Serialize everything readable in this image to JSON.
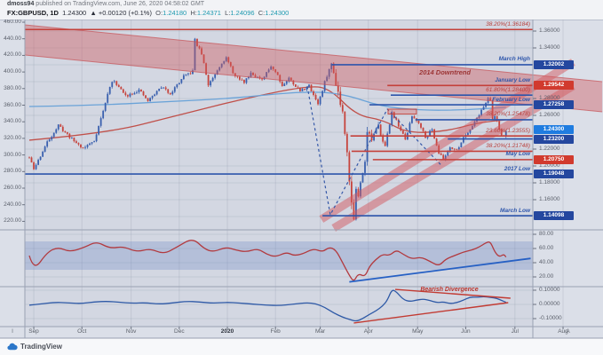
{
  "header": {
    "byline_user": "dmoss94",
    "byline_rest": " published on TradingView.com, June 26, 2020 04:58:02 GMT",
    "symbol": "FX:GBPUSD, 1D",
    "last_price": "1.24300",
    "change": "▲ +0.00120 (+0.1%)",
    "o_label": "O:",
    "o_value": "1.24180",
    "h_label": "H:",
    "h_value": "1.24371",
    "l_label": "L:",
    "l_value": "1.24096",
    "c_label": "C:",
    "c_value": "1.24300"
  },
  "watermark": {
    "brand": "TradingView"
  },
  "axes": {
    "left_ticks": [
      "460.00",
      "440.00",
      "420.00",
      "400.00",
      "380.00",
      "360.00",
      "340.00",
      "320.00",
      "300.00",
      "280.00",
      "260.00",
      "240.00",
      "220.00"
    ],
    "right_ticks": [
      "1.36000",
      "1.34000",
      "1.28000",
      "1.26000",
      "1.22000",
      "1.20000",
      "1.18000",
      "1.16000"
    ],
    "rsi_ticks": [
      "80.00",
      "60.00",
      "40.00",
      "20.00"
    ],
    "macd_ticks": [
      "0.10000",
      "0.00000",
      "-0.10000"
    ],
    "months": [
      {
        "label": "Sep",
        "day": 2
      },
      {
        "label": "Oct",
        "day": 23.5
      },
      {
        "label": "Nov",
        "day": 45.5
      },
      {
        "label": "Dec",
        "day": 67
      },
      {
        "label": "2020",
        "day": 88.5,
        "year": true
      },
      {
        "label": "Feb",
        "day": 110
      },
      {
        "label": "Mar",
        "day": 130
      },
      {
        "label": "Apr",
        "day": 151.5
      },
      {
        "label": "May",
        "day": 173.5
      },
      {
        "label": "Jun",
        "day": 195
      },
      {
        "label": "Jul",
        "day": 217
      },
      {
        "label": "Aug",
        "day": 238.5
      }
    ],
    "corner_left": "I",
    "corner_right": "A"
  },
  "chart_data": {
    "type": "candlestick",
    "symbol": "FX:GBPUSD",
    "interval": "1D",
    "main": {
      "price_keypoints": [
        [
          0,
          1.21
        ],
        [
          2,
          1.196
        ],
        [
          8,
          1.228
        ],
        [
          13,
          1.248
        ],
        [
          19,
          1.232
        ],
        [
          24,
          1.221
        ],
        [
          29,
          1.23
        ],
        [
          33,
          1.265
        ],
        [
          36,
          1.295
        ],
        [
          38,
          1.301
        ],
        [
          43,
          1.283
        ],
        [
          49,
          1.29
        ],
        [
          53,
          1.277
        ],
        [
          59,
          1.294
        ],
        [
          63,
          1.286
        ],
        [
          69,
          1.306
        ],
        [
          73,
          1.312
        ],
        [
          74,
          1.351
        ],
        [
          75,
          1.343
        ],
        [
          77,
          1.333
        ],
        [
          80,
          1.296
        ],
        [
          86,
          1.323
        ],
        [
          88,
          1.328
        ],
        [
          92,
          1.306
        ],
        [
          96,
          1.2995
        ],
        [
          99,
          1.311
        ],
        [
          104,
          1.301
        ],
        [
          108,
          1.319
        ],
        [
          111,
          1.308
        ],
        [
          113,
          1.295
        ],
        [
          116,
          1.304
        ],
        [
          121,
          1.289
        ],
        [
          125,
          1.295
        ],
        [
          129,
          1.274
        ],
        [
          131,
          1.289
        ],
        [
          133,
          1.308
        ],
        [
          135,
          1.32
        ],
        [
          136,
          1.311
        ],
        [
          138,
          1.288
        ],
        [
          140,
          1.264
        ],
        [
          142,
          1.222
        ],
        [
          143,
          1.182
        ],
        [
          144,
          1.155
        ],
        [
          145,
          1.141
        ],
        [
          146,
          1.17
        ],
        [
          147,
          1.162
        ],
        [
          149,
          1.195
        ],
        [
          150,
          1.21
        ],
        [
          151,
          1.242
        ],
        [
          153,
          1.231
        ],
        [
          156,
          1.247
        ],
        [
          159,
          1.223
        ],
        [
          162,
          1.264
        ],
        [
          165,
          1.248
        ],
        [
          168,
          1.231
        ],
        [
          171,
          1.259
        ],
        [
          174,
          1.252
        ],
        [
          177,
          1.235
        ],
        [
          180,
          1.243
        ],
        [
          183,
          1.216
        ],
        [
          185,
          1.2075
        ],
        [
          188,
          1.223
        ],
        [
          191,
          1.218
        ],
        [
          194,
          1.234
        ],
        [
          197,
          1.244
        ],
        [
          200,
          1.257
        ],
        [
          203,
          1.27
        ],
        [
          205,
          1.281
        ],
        [
          206,
          1.277
        ],
        [
          207,
          1.2545
        ],
        [
          208,
          1.259
        ],
        [
          209,
          1.253
        ],
        [
          210,
          1.243
        ],
        [
          211,
          1.237
        ],
        [
          212,
          1.234
        ],
        [
          213,
          1.243
        ]
      ],
      "ma_fast_blue": [
        [
          0,
          1.2705
        ],
        [
          30,
          1.272
        ],
        [
          60,
          1.276
        ],
        [
          90,
          1.28
        ],
        [
          122,
          1.2884
        ],
        [
          140,
          1.286
        ],
        [
          157,
          1.2705
        ],
        [
          175,
          1.266
        ],
        [
          193,
          1.2663
        ],
        [
          213,
          1.2695
        ]
      ],
      "ma_slow_red": [
        [
          0,
          1.2306
        ],
        [
          35,
          1.2389
        ],
        [
          66,
          1.26
        ],
        [
          98,
          1.2811
        ],
        [
          124,
          1.2947
        ],
        [
          134,
          1.2926
        ],
        [
          146,
          1.26
        ],
        [
          158,
          1.2547
        ],
        [
          169,
          1.2389
        ],
        [
          186,
          1.241
        ],
        [
          201,
          1.2516
        ],
        [
          213,
          1.2547
        ]
      ],
      "levels": [
        {
          "label": "38.20%(1.36184)",
          "style": "fib",
          "price": 1.36184,
          "from_day": null,
          "line": "red"
        },
        {
          "label": "March High",
          "style": "name",
          "price": 1.32002,
          "from_day": 135,
          "line": "blue",
          "badge": {
            "text": "1.32002",
            "color": "navy"
          }
        },
        {
          "label": "January Low",
          "style": "name",
          "price": 1.29542,
          "from_day": 160,
          "line": "red",
          "badge": {
            "text": "1.29542",
            "color": "red"
          }
        },
        {
          "label": "61.80%(1.28400)",
          "style": "fib",
          "price": 1.284,
          "from_day": 161.5,
          "line": "blue"
        },
        {
          "label": "February Low",
          "style": "name",
          "price": 1.27258,
          "from_day": 152,
          "line": "blue",
          "badge": {
            "text": "1.27258",
            "color": "navy"
          }
        },
        {
          "label": "38.20%(1.25478)",
          "style": "fib",
          "price": 1.25478,
          "from_day": 172.5,
          "line": "blue"
        },
        {
          "label": "23.60%(1.23555)",
          "style": "fib",
          "price": 1.23555,
          "from_day": 143.5,
          "line": "red"
        },
        {
          "label": "",
          "style": "name",
          "price": 1.232,
          "from_day": 187,
          "line": "blue",
          "badge": {
            "text": "1.23200",
            "color": "navy"
          }
        },
        {
          "label": "38.20%(1.21748)",
          "style": "fib",
          "price": 1.21748,
          "from_day": 144,
          "line": "red"
        },
        {
          "label": "May Low",
          "style": "name",
          "price": 1.2075,
          "from_day": 153.5,
          "line": "red",
          "badge": {
            "text": "1.20750",
            "color": "red"
          }
        },
        {
          "label": "2017 Low",
          "style": "name",
          "price": 1.19048,
          "from_day": null,
          "line": "blue",
          "badge": {
            "text": "1.19048",
            "color": "navy"
          }
        },
        {
          "label": "March Low",
          "style": "name",
          "price": 1.14098,
          "from_day": 131,
          "line": "blue",
          "badge": {
            "text": "1.14098",
            "color": "navy"
          }
        }
      ],
      "current_price": {
        "text": "1.24300",
        "price": 1.243,
        "color": "active"
      },
      "downtrend_channel": {
        "label": "2014 Downtrend",
        "upper": [
          [
            -2,
            1.3674
          ],
          [
            256,
            1.3
          ]
        ],
        "lower": [
          [
            -2,
            1.3316
          ],
          [
            256,
            1.2642
          ]
        ]
      },
      "uptrend_lines": [
        [
          [
            130.5,
            1.1368
          ],
          [
            243,
            1.3232
          ]
        ],
        [
          [
            136,
            1.1263
          ],
          [
            243,
            1.2947
          ]
        ]
      ],
      "supply_box": {
        "day_start": 160.3,
        "day_end": 173,
        "price_top": 1.2674,
        "price_bottom": 1.2616
      },
      "dashed_zigzag": [
        [
          124.2,
          1.2947
        ],
        [
          134.5,
          1.1421
        ],
        [
          160,
          1.2674
        ],
        [
          184,
          1.2011
        ]
      ]
    },
    "rsi_panel": {
      "type": "line",
      "band": [
        30,
        70
      ],
      "keypoints": [
        [
          0,
          50
        ],
        [
          2,
          28
        ],
        [
          8,
          55
        ],
        [
          13,
          62
        ],
        [
          18,
          55
        ],
        [
          25,
          62
        ],
        [
          30,
          70
        ],
        [
          36,
          60
        ],
        [
          42,
          63
        ],
        [
          48,
          55
        ],
        [
          54,
          60
        ],
        [
          60,
          52
        ],
        [
          66,
          62
        ],
        [
          73,
          75
        ],
        [
          78,
          60
        ],
        [
          82,
          55
        ],
        [
          88,
          62
        ],
        [
          92,
          58
        ],
        [
          97,
          55
        ],
        [
          102,
          60
        ],
        [
          106,
          52
        ],
        [
          110,
          48
        ],
        [
          115,
          55
        ],
        [
          118,
          50
        ],
        [
          122,
          52
        ],
        [
          127,
          60
        ],
        [
          131,
          55
        ],
        [
          134,
          62
        ],
        [
          137,
          58
        ],
        [
          140,
          40
        ],
        [
          143,
          22
        ],
        [
          145,
          13
        ],
        [
          147,
          25
        ],
        [
          150,
          20
        ],
        [
          152,
          35
        ],
        [
          155,
          45
        ],
        [
          158,
          52
        ],
        [
          161,
          50
        ],
        [
          164,
          58
        ],
        [
          167,
          52
        ],
        [
          171,
          45
        ],
        [
          175,
          48
        ],
        [
          179,
          42
        ],
        [
          183,
          35
        ],
        [
          186,
          45
        ],
        [
          190,
          50
        ],
        [
          194,
          55
        ],
        [
          198,
          58
        ],
        [
          201,
          62
        ],
        [
          204,
          68
        ],
        [
          206,
          70
        ],
        [
          208,
          55
        ],
        [
          210,
          48
        ],
        [
          212,
          52
        ],
        [
          213,
          48
        ]
      ],
      "trendline": {
        "from": [
          143,
          13
        ],
        "to": [
          224,
          46
        ]
      }
    },
    "macd_panel": {
      "type": "line",
      "label": "Bearish Divergence",
      "keypoints": [
        [
          0,
          -0.005
        ],
        [
          5,
          0.002
        ],
        [
          11,
          0.015
        ],
        [
          17,
          0.012
        ],
        [
          23,
          0.005
        ],
        [
          29,
          0.018
        ],
        [
          35,
          0.022
        ],
        [
          40,
          0.015
        ],
        [
          46,
          0.008
        ],
        [
          52,
          0.012
        ],
        [
          58,
          0.002
        ],
        [
          64,
          0.01
        ],
        [
          70,
          0.022
        ],
        [
          76,
          0.018
        ],
        [
          82,
          0.008
        ],
        [
          88,
          0.015
        ],
        [
          94,
          0.01
        ],
        [
          100,
          0.002
        ],
        [
          106,
          -0.005
        ],
        [
          112,
          -0.008
        ],
        [
          118,
          0.002
        ],
        [
          124,
          0.012
        ],
        [
          128,
          0.005
        ],
        [
          132,
          -0.02
        ],
        [
          136,
          -0.06
        ],
        [
          140,
          -0.09
        ],
        [
          143,
          -0.105
        ],
        [
          146,
          -0.12
        ],
        [
          149,
          -0.1
        ],
        [
          152,
          -0.07
        ],
        [
          155,
          -0.045
        ],
        [
          158,
          -0.01
        ],
        [
          160,
          0.03
        ],
        [
          162,
          0.105
        ],
        [
          164,
          0.09
        ],
        [
          167,
          0.035
        ],
        [
          170,
          0.02
        ],
        [
          173,
          0.03
        ],
        [
          176,
          0.038
        ],
        [
          179,
          0.028
        ],
        [
          182,
          0.012
        ],
        [
          185,
          0.018
        ],
        [
          188,
          0.005
        ],
        [
          191,
          0.012
        ],
        [
          194,
          0.03
        ],
        [
          197,
          0.052
        ],
        [
          200,
          0.05
        ],
        [
          203,
          0.055
        ],
        [
          206,
          0.05
        ],
        [
          209,
          0.042
        ],
        [
          211,
          0.028
        ],
        [
          213,
          0.015
        ]
      ],
      "divergence_lines": [
        {
          "from": [
            163.5,
            0.106
          ],
          "to": [
            215,
            0.0438
          ]
        },
        {
          "from": [
            145,
            -0.131
          ],
          "to": [
            214,
            0.0125
          ]
        }
      ]
    }
  },
  "colors": {
    "up_candle": "#3a60ae",
    "down_candle": "#c6443d",
    "level_blue": "#2d55ab",
    "level_red": "#c4403a",
    "badge_navy": "#24479f",
    "badge_red": "#d13a2e",
    "badge_active": "#1f7ce0",
    "channel_pink": "rgba(208,88,92,0.42)",
    "rsi_line": "#b23a3f",
    "macd_line": "#2e59a6",
    "trend_blue": "#2660c4",
    "ohlc_teal": "#1f9ab0"
  }
}
